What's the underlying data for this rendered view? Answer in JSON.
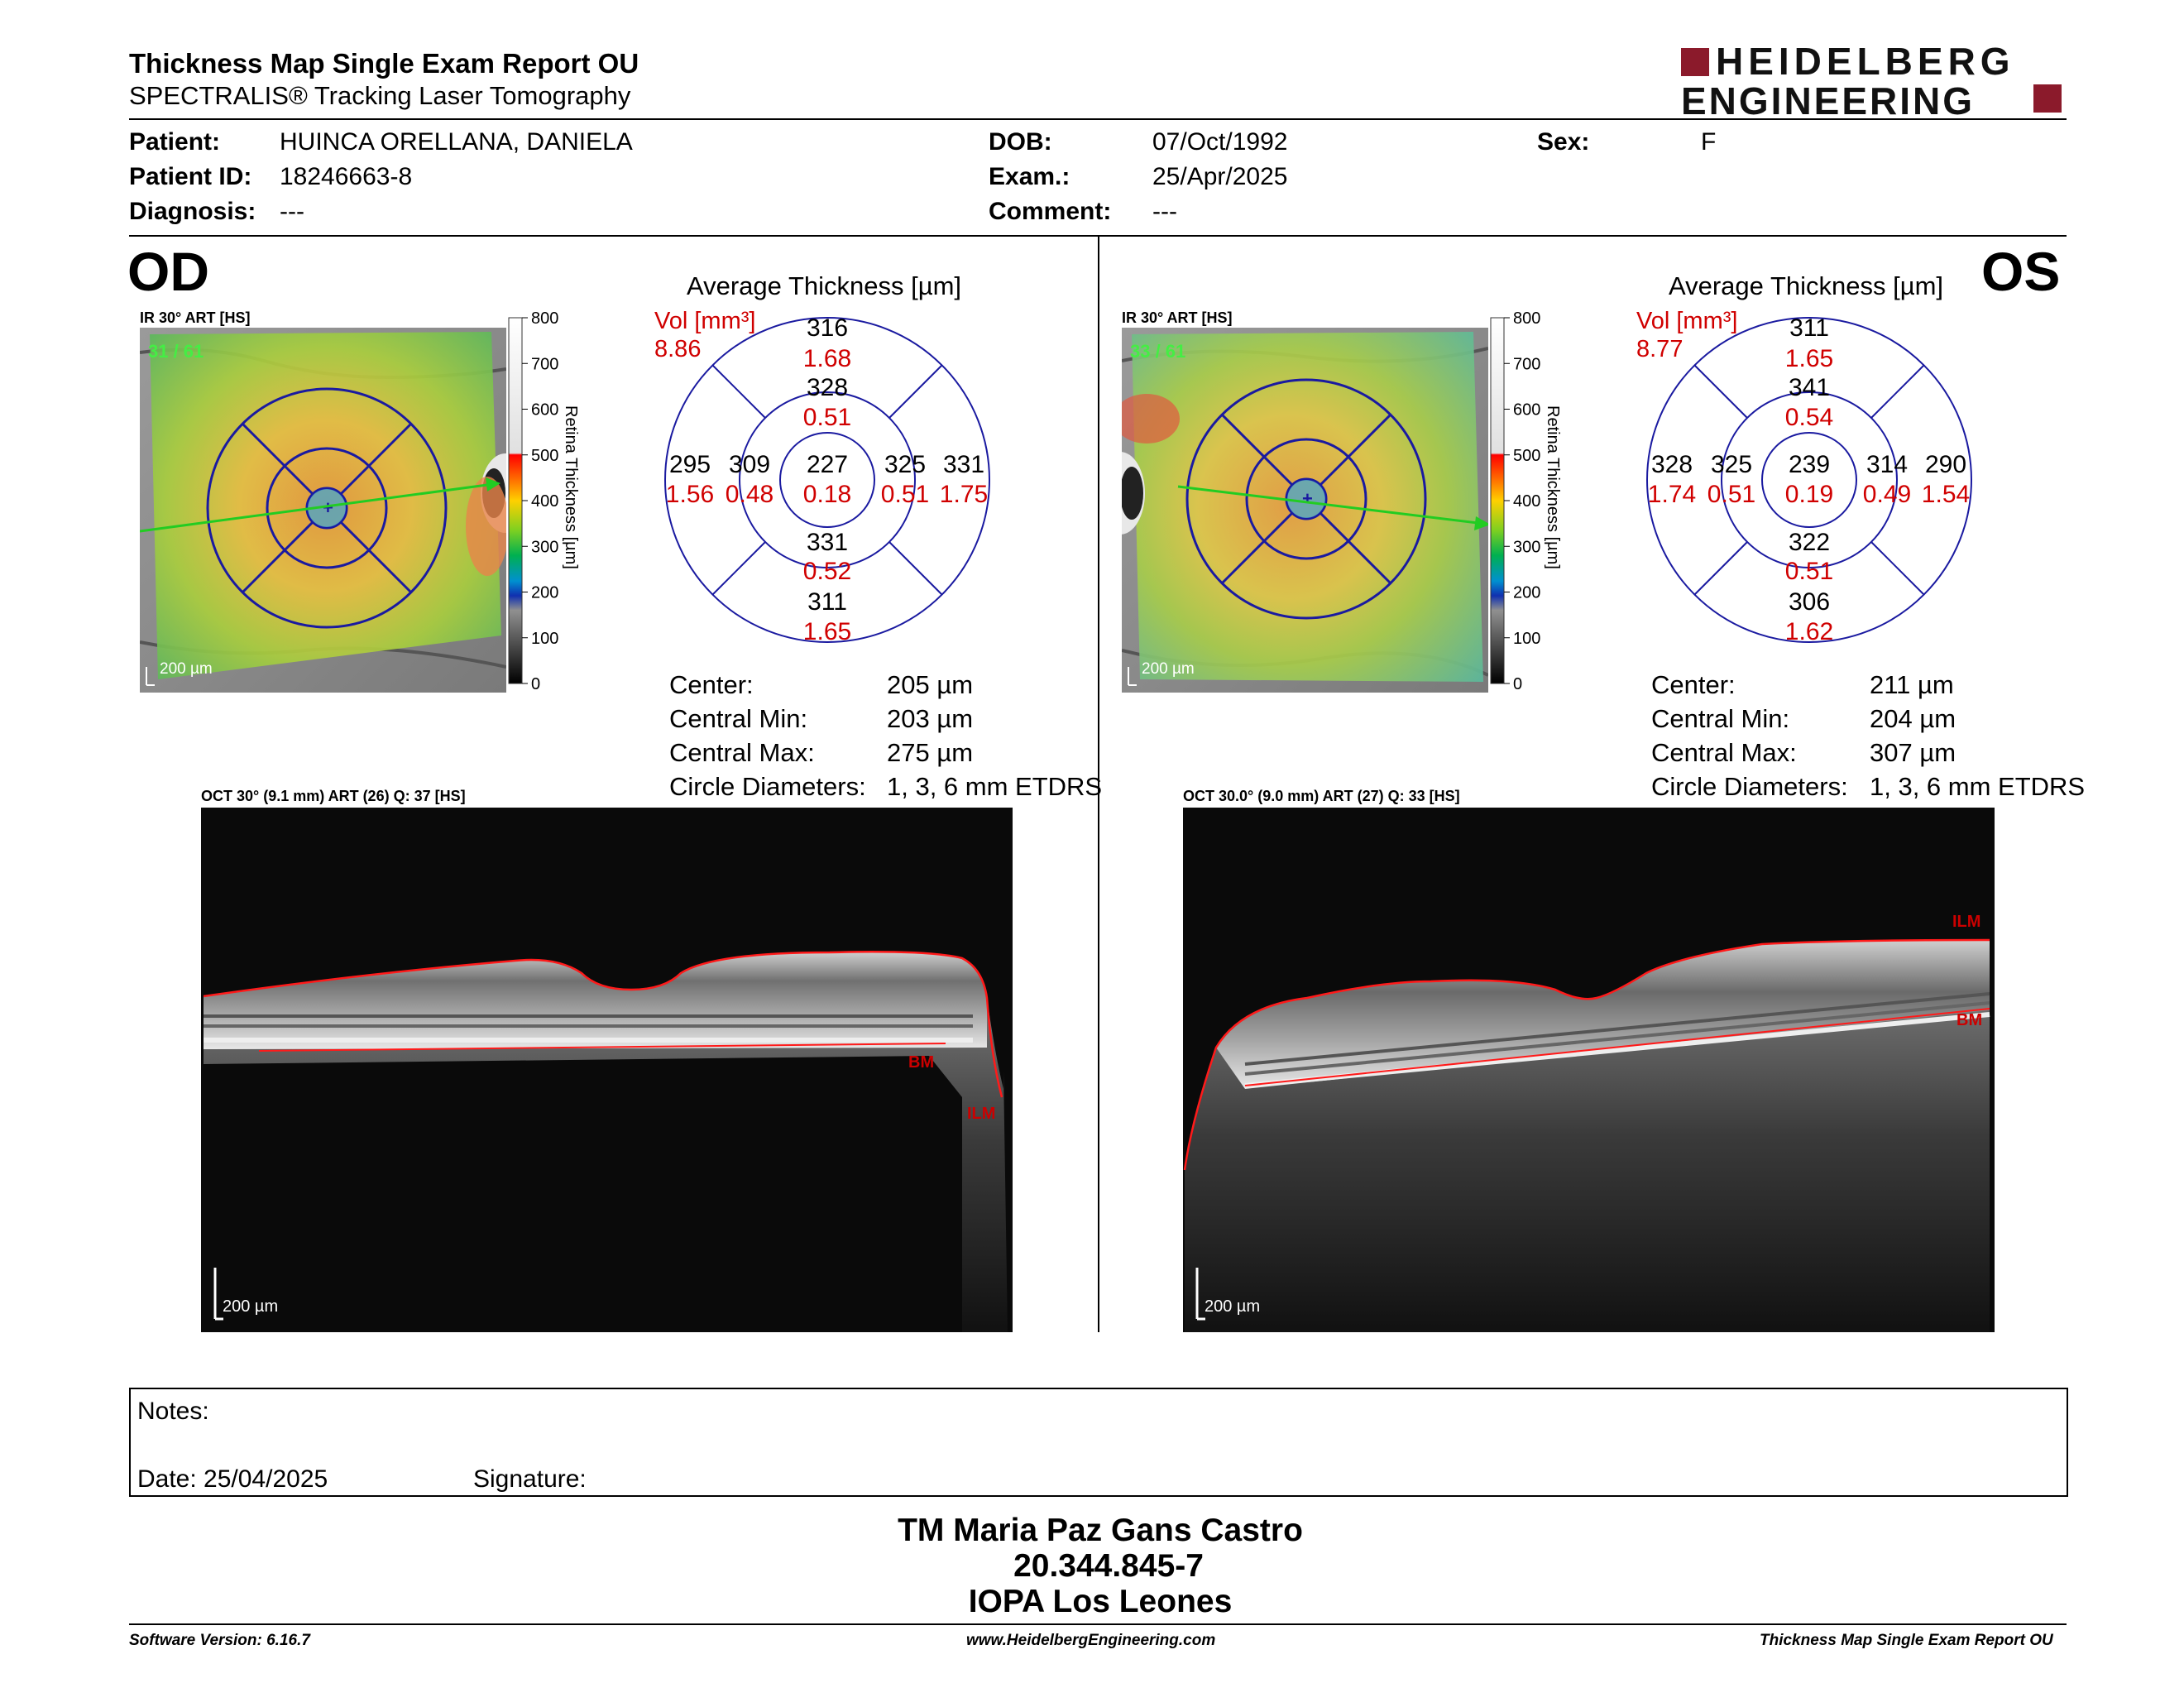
{
  "header": {
    "title": "Thickness Map Single Exam Report OU",
    "subtitle": "SPECTRALIS® Tracking Laser Tomography",
    "logo_line1": "HEIDELBERG",
    "logo_line2": "ENGINEERING",
    "brand_color": "#8b1a2b"
  },
  "patient": {
    "patient_label": "Patient:",
    "patient_value": "HUINCA ORELLANA, DANIELA",
    "id_label": "Patient ID:",
    "id_value": "18246663-8",
    "diagnosis_label": "Diagnosis:",
    "diagnosis_value": "---",
    "dob_label": "DOB:",
    "dob_value": "07/Oct/1992",
    "exam_label": "Exam.:",
    "exam_value": "25/Apr/2025",
    "comment_label": "Comment:",
    "comment_value": "---",
    "sex_label": "Sex:",
    "sex_value": "F"
  },
  "scale": {
    "title": "Retina  Thickness [µm]",
    "ticks": [
      "800",
      "700",
      "600",
      "500",
      "400",
      "300",
      "200",
      "100",
      "0"
    ]
  },
  "od": {
    "eye": "OD",
    "ir_label": "IR 30° ART [HS]",
    "ir_count": "31 / 61",
    "scale_bar": "200 µm",
    "avg_title": "Average Thickness [µm]",
    "vol_label": "Vol [mm³]",
    "vol_value": "8.86",
    "sectors": {
      "outer_sup": [
        "316",
        "1.68"
      ],
      "inner_sup": [
        "328",
        "0.51"
      ],
      "outer_left": [
        "295",
        "1.56"
      ],
      "inner_left": [
        "309",
        "0.48"
      ],
      "center": [
        "227",
        "0.18"
      ],
      "inner_right": [
        "325",
        "0.51"
      ],
      "outer_right": [
        "331",
        "1.75"
      ],
      "inner_inf": [
        "331",
        "0.52"
      ],
      "outer_inf": [
        "311",
        "1.65"
      ]
    },
    "stats": [
      [
        "Center:",
        "205 µm"
      ],
      [
        "Central Min:",
        "203 µm"
      ],
      [
        "Central Max:",
        "275 µm"
      ],
      [
        "Circle Diameters:",
        "1, 3, 6 mm ETDRS"
      ]
    ],
    "oct_label": "OCT 30° (9.1 mm) ART (26) Q: 37 [HS]",
    "oct_scale": "200 µm",
    "bm": "BM",
    "ilm": "ILM"
  },
  "os": {
    "eye": "OS",
    "ir_label": "IR 30° ART [HS]",
    "ir_count": "33 / 61",
    "scale_bar": "200 µm",
    "avg_title": "Average Thickness [µm]",
    "vol_label": "Vol [mm³]",
    "vol_value": "8.77",
    "sectors": {
      "outer_sup": [
        "311",
        "1.65"
      ],
      "inner_sup": [
        "341",
        "0.54"
      ],
      "outer_left": [
        "328",
        "1.74"
      ],
      "inner_left": [
        "325",
        "0.51"
      ],
      "center": [
        "239",
        "0.19"
      ],
      "inner_right": [
        "314",
        "0.49"
      ],
      "outer_right": [
        "290",
        "1.54"
      ],
      "inner_inf": [
        "322",
        "0.51"
      ],
      "outer_inf": [
        "306",
        "1.62"
      ]
    },
    "stats": [
      [
        "Center:",
        "211 µm"
      ],
      [
        "Central Min:",
        "204 µm"
      ],
      [
        "Central Max:",
        "307 µm"
      ],
      [
        "Circle Diameters:",
        "1, 3, 6 mm ETDRS"
      ]
    ],
    "oct_label": "OCT 30.0° (9.0 mm) ART (27) Q: 33 [HS]",
    "oct_scale": "200 µm",
    "bm": "BM",
    "ilm": "ILM"
  },
  "notes": {
    "notes_label": "Notes:",
    "date_label": "Date: 25/04/2025",
    "signature_label": "Signature:"
  },
  "signatory": {
    "name": "TM Maria Paz Gans Castro",
    "id": "20.344.845-7",
    "clinic": "IOPA Los Leones"
  },
  "footer": {
    "left": "Software Version: 6.16.7",
    "center": "www.HeidelbergEngineering.com",
    "right": "Thickness Map Single Exam Report OU"
  }
}
